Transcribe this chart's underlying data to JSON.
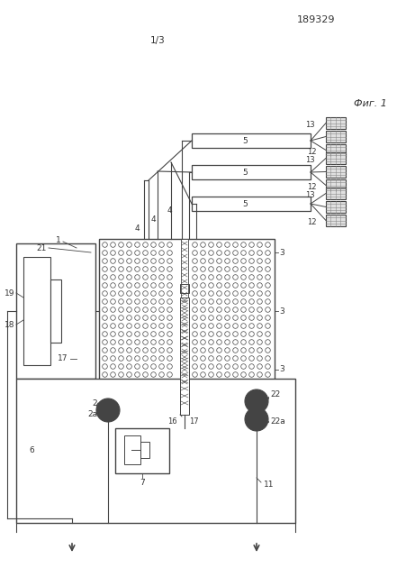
{
  "patent_number": "189329",
  "page_label": "1/3",
  "figure_label": "Фиг. 1",
  "bg_color": "#ffffff",
  "line_color": "#444444",
  "text_color": "#333333"
}
